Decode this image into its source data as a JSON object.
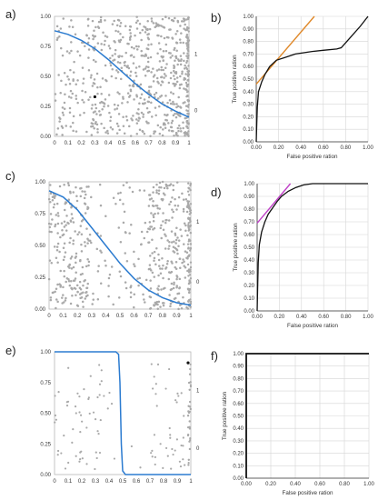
{
  "chart_data": [
    {
      "panel": "a)",
      "type": "scatter",
      "xticks": [
        "0",
        "0.1",
        "0.2",
        "0.3",
        "0.4",
        "0.5",
        "0.6",
        "0.7",
        "0.8",
        "0.9",
        "1"
      ],
      "yticks": [
        "0.00",
        "0.25",
        "0.50",
        "0.75",
        "1.00"
      ],
      "right_ticks": [
        "1",
        "0"
      ],
      "xlim": [
        0,
        1
      ],
      "ylim": [
        0,
        1
      ],
      "highlight_point": [
        0.3,
        0.33
      ],
      "curve_color": "#2b7bd0",
      "point_color": "#a9a9a9",
      "curve": [
        [
          0,
          0.88
        ],
        [
          0.1,
          0.85
        ],
        [
          0.2,
          0.8
        ],
        [
          0.3,
          0.73
        ],
        [
          0.4,
          0.64
        ],
        [
          0.5,
          0.54
        ],
        [
          0.6,
          0.44
        ],
        [
          0.7,
          0.35
        ],
        [
          0.8,
          0.27
        ],
        [
          0.9,
          0.21
        ],
        [
          1,
          0.16
        ]
      ],
      "scatter_density": "increasing toward x=1"
    },
    {
      "panel": "b)",
      "type": "line",
      "xlabel": "False positive ration",
      "ylabel": "True positive ration",
      "xticks": [
        "0.00",
        "0.20",
        "0.40",
        "0.60",
        "0.80",
        "1.00"
      ],
      "yticks": [
        "0.00",
        "0.10",
        "0.20",
        "0.30",
        "0.40",
        "0.50",
        "0.60",
        "0.70",
        "0.80",
        "0.90",
        "1.00"
      ],
      "xlim": [
        0,
        1
      ],
      "ylim": [
        0,
        1
      ],
      "roc": [
        [
          0,
          0
        ],
        [
          0.005,
          0.15
        ],
        [
          0.01,
          0.28
        ],
        [
          0.02,
          0.4
        ],
        [
          0.05,
          0.48
        ],
        [
          0.08,
          0.54
        ],
        [
          0.12,
          0.6
        ],
        [
          0.18,
          0.65
        ],
        [
          0.25,
          0.67
        ],
        [
          0.35,
          0.7
        ],
        [
          0.5,
          0.72
        ],
        [
          0.6,
          0.73
        ],
        [
          0.72,
          0.74
        ],
        [
          0.76,
          0.75
        ],
        [
          0.85,
          0.84
        ],
        [
          0.93,
          0.92
        ],
        [
          1,
          1
        ]
      ],
      "tangent": [
        [
          0.0,
          0.46
        ],
        [
          0.52,
          1.0
        ]
      ],
      "tangent_color": "#e0892a"
    },
    {
      "panel": "c)",
      "type": "scatter",
      "xticks": [
        "0",
        "0.1",
        "0.2",
        "0.3",
        "0.4",
        "0.5",
        "0.6",
        "0.7",
        "0.8",
        "0.9",
        "1"
      ],
      "yticks": [
        "0.00",
        "0.25",
        "0.50",
        "0.75",
        "1.00"
      ],
      "right_ticks": [
        "1",
        "0"
      ],
      "xlim": [
        0,
        1
      ],
      "ylim": [
        0,
        1
      ],
      "curve_color": "#2b7bd0",
      "point_color": "#a9a9a9",
      "curve": [
        [
          0,
          0.93
        ],
        [
          0.1,
          0.88
        ],
        [
          0.2,
          0.78
        ],
        [
          0.3,
          0.64
        ],
        [
          0.4,
          0.5
        ],
        [
          0.5,
          0.36
        ],
        [
          0.6,
          0.24
        ],
        [
          0.7,
          0.15
        ],
        [
          0.8,
          0.09
        ],
        [
          0.9,
          0.05
        ],
        [
          1,
          0.03
        ]
      ],
      "scatter_density": "clusters at both ends"
    },
    {
      "panel": "d)",
      "type": "line",
      "xlabel": "False positive ration",
      "ylabel": "True positive ration",
      "xticks": [
        "0.00",
        "0.20",
        "0.40",
        "0.60",
        "0.80",
        "1.00"
      ],
      "yticks": [
        "0.00",
        "0.10",
        "0.20",
        "0.30",
        "0.40",
        "0.50",
        "0.60",
        "0.70",
        "0.80",
        "0.90",
        "1.00"
      ],
      "xlim": [
        0,
        1
      ],
      "ylim": [
        0,
        1
      ],
      "roc": [
        [
          0,
          0
        ],
        [
          0.005,
          0.2
        ],
        [
          0.01,
          0.38
        ],
        [
          0.02,
          0.52
        ],
        [
          0.04,
          0.62
        ],
        [
          0.07,
          0.7
        ],
        [
          0.1,
          0.76
        ],
        [
          0.14,
          0.81
        ],
        [
          0.18,
          0.86
        ],
        [
          0.22,
          0.9
        ],
        [
          0.28,
          0.94
        ],
        [
          0.35,
          0.97
        ],
        [
          0.42,
          0.99
        ],
        [
          0.5,
          1.0
        ],
        [
          1,
          1.0
        ]
      ],
      "tangent": [
        [
          0.0,
          0.69
        ],
        [
          0.3,
          1.0
        ]
      ],
      "tangent_color": "#c040c8"
    },
    {
      "panel": "e)",
      "type": "scatter",
      "xticks": [
        "0",
        "0.1",
        "0.2",
        "0.3",
        "0.4",
        "0.5",
        "0.6",
        "0.7",
        "0.8",
        "0.9",
        "1"
      ],
      "yticks": [
        "0.00",
        "0.25",
        "0.50",
        "0.75",
        "1.00"
      ],
      "right_ticks": [
        "1",
        "0"
      ],
      "xlim": [
        0,
        1
      ],
      "ylim": [
        0,
        1
      ],
      "highlight_point": [
        0.98,
        0.91
      ],
      "curve_color": "#2b7bd0",
      "point_color": "#a9a9a9",
      "curve": [
        [
          0,
          1.0
        ],
        [
          0.45,
          1.0
        ],
        [
          0.47,
          0.98
        ],
        [
          0.48,
          0.75
        ],
        [
          0.49,
          0.25
        ],
        [
          0.5,
          0.03
        ],
        [
          0.52,
          0.0
        ],
        [
          1,
          0.0
        ]
      ],
      "scatter_density": "sparse, clusters near ends"
    },
    {
      "panel": "f)",
      "type": "line",
      "xlabel": "False positive ration",
      "ylabel": "True positive ration",
      "xticks": [
        "0.00",
        "0.20",
        "0.40",
        "0.60",
        "0.80",
        "1.00"
      ],
      "yticks": [
        "0.00",
        "0.10",
        "0.20",
        "0.30",
        "0.40",
        "0.50",
        "0.60",
        "0.70",
        "0.80",
        "0.90",
        "1.00"
      ],
      "xlim": [
        0,
        1
      ],
      "ylim": [
        0,
        1
      ],
      "roc": [
        [
          0,
          0
        ],
        [
          0,
          1.0
        ],
        [
          1,
          1.0
        ]
      ]
    }
  ]
}
